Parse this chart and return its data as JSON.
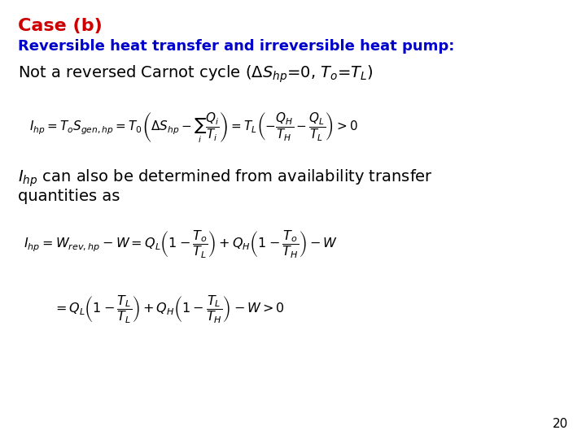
{
  "title_line1": "Case (b)",
  "title_line1_color": "#CC0000",
  "title_line2": "Reversible heat transfer and irreversible heat pump:",
  "title_line2_color": "#0000CC",
  "bg_color": "#FFFFFF",
  "text_color": "#000000",
  "page_number": "20",
  "line3": "Not a reversed Carnot cycle ($\\Delta S_{hp}$=0, $T_o$=$T_L$)",
  "eq1": "$I_{hp} = T_oS_{gen,hp} = T_0\\left(\\Delta S_{hp} - \\sum_{i}\\dfrac{Q_i}{T_i}\\right) = T_L\\left(-\\dfrac{Q_H}{T_H} - \\dfrac{Q_L}{T_L}\\right) > 0$",
  "para1_line1": "$I_{hp}$ can also be determined from availability transfer",
  "para1_line2": "quantities as",
  "eq2": "$I_{hp} = W_{rev,hp} - W = Q_L\\left(1 - \\dfrac{T_o}{T_L}\\right) + Q_H\\left(1 - \\dfrac{T_o}{T_{H}}\\right) - W$",
  "eq3": "$= Q_L\\left(1 - \\dfrac{T_L}{T_L}\\right) + Q_H\\left(1 - \\dfrac{T_L}{T_H}\\right) - W > 0$"
}
